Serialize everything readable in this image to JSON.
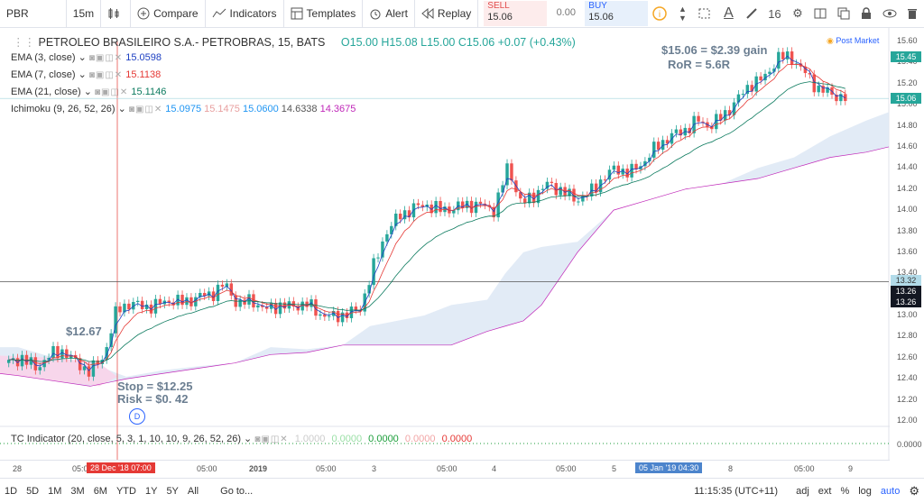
{
  "toolbar": {
    "symbol": "PBR",
    "interval": "15m",
    "compare": "Compare",
    "indicators": "Indicators",
    "templates": "Templates",
    "alert": "Alert",
    "replay": "Replay",
    "sell_label": "SELL",
    "sell_price": "15.06",
    "spread": "0.00",
    "buy_label": "BUY",
    "buy_price": "15.06",
    "font_size": "16"
  },
  "legend": {
    "title": "PETROLEO BRASILEIRO S.A.- PETROBRAS, 15, BATS",
    "ohlc": "O15.00  H15.08  L15.00  C15.06  +0.07 (+0.43%)",
    "post_market": "Post Market",
    "ema3_label": "EMA (3, close)",
    "ema3_value": "15.0598",
    "ema7_label": "EMA (7, close)",
    "ema7_value": "15.1138",
    "ema21_label": "EMA (21, close)",
    "ema21_value": "15.1146",
    "ichimoku_label": "Ichimoku (9, 26, 52, 26)",
    "ichimoku_values": [
      "15.0975",
      "15.1475",
      "15.0600",
      "14.6338",
      "14.3675"
    ],
    "tc_label": "TC Indicator (20, close, 5, 3, 1, 10, 10, 9, 26, 52, 26)",
    "tc_values": [
      "1.0000",
      "0.0000",
      "0.0000",
      "0.0000",
      "0.0000"
    ]
  },
  "annotations": {
    "gain": "$15.06 = $2.39 gain",
    "ror": "RoR = 5.6R",
    "entry": "$12.67",
    "stop": "Stop = $12.25",
    "risk": "Risk = $0. 42",
    "marker": "D"
  },
  "price_axis": {
    "ticks": [
      "15.60",
      "15.40",
      "15.20",
      "15.00",
      "14.80",
      "14.60",
      "14.40",
      "14.20",
      "14.00",
      "13.80",
      "13.60",
      "13.40",
      "13.20",
      "13.00",
      "12.80",
      "12.60",
      "12.40",
      "12.20",
      "12.00"
    ],
    "tag_high": "15.45",
    "tag_last": "15.06",
    "tag_line": "13.32",
    "tag_cross1": "13.26",
    "tag_cross2": "13.26",
    "tc_tick": "0.0000"
  },
  "time_axis": {
    "labels": [
      "28",
      "05:00",
      "05:00",
      "2019",
      "05:00",
      "3",
      "05:00",
      "4",
      "05:00",
      "5",
      "05:00",
      "8",
      "05:00",
      "9"
    ],
    "cursor_date": "28 Dec '18   07:00",
    "cursor_date2": "05 Jan '19   04:30"
  },
  "bottom": {
    "ranges": [
      "1D",
      "5D",
      "1M",
      "3M",
      "6M",
      "YTD",
      "1Y",
      "5Y",
      "All"
    ],
    "goto": "Go to...",
    "clock": "11:15:35 (UTC+11)",
    "adj": "adj",
    "ext": "ext",
    "pct": "%",
    "log": "log",
    "auto": "auto"
  },
  "colors": {
    "up": "#26a69a",
    "down": "#ef5350",
    "cloud_bull": "#dde8f5",
    "cloud_bear": "#f9d4ea",
    "accent": "#2962ff"
  },
  "chart_data": {
    "type": "candlestick",
    "symbol": "PBR",
    "interval": "15m",
    "ylim": [
      11.9,
      15.7
    ],
    "price_path": [
      12.55,
      12.6,
      12.5,
      12.62,
      12.67,
      12.55,
      12.47,
      12.6,
      13.05,
      13.12,
      13.08,
      13.1,
      13.15,
      13.12,
      13.18,
      13.2,
      13.3,
      13.1,
      13.15,
      13.05,
      13.1,
      13.08,
      13.12,
      13.02,
      12.98,
      13.02,
      13.05,
      13.45,
      13.8,
      13.95,
      14.02,
      14.05,
      14.0,
      14.02,
      14.05,
      14.05,
      14.0,
      14.42,
      14.05,
      14.15,
      14.25,
      14.18,
      14.1,
      14.15,
      14.3,
      14.4,
      14.35,
      14.45,
      14.6,
      14.7,
      14.75,
      14.85,
      14.8,
      14.9,
      15.05,
      15.2,
      15.25,
      15.45,
      15.45,
      15.3,
      15.15,
      15.1,
      15.06
    ],
    "annotations": [
      "$15.06 = $2.39 gain",
      "RoR = 5.6R",
      "$12.67",
      "Stop = $12.25",
      "Risk = $0. 42"
    ]
  }
}
